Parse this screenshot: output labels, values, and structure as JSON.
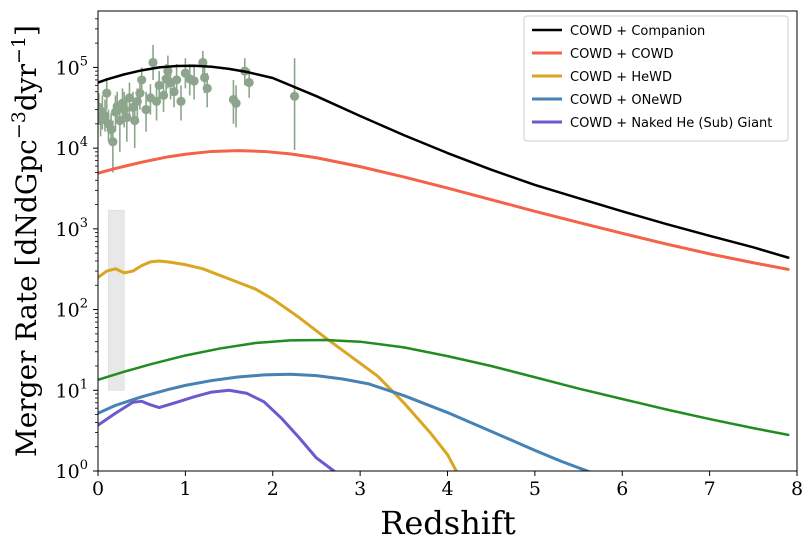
{
  "chart_data": {
    "type": "line",
    "title": "",
    "xlabel": "Redshift",
    "ylabel_main": "Merger Rate [dNdGpc",
    "ylabel_sup1": "−3",
    "ylabel_mid": "dyr",
    "ylabel_sup2": "−1",
    "ylabel_end": "]",
    "xlim": [
      0,
      8
    ],
    "ylim": [
      1,
      500000
    ],
    "yscale": "log",
    "grid": false,
    "legend_position": "top-right",
    "x_ticks": [
      "0",
      "1",
      "2",
      "3",
      "4",
      "5",
      "6",
      "7",
      "8"
    ],
    "y_tick_base": "10",
    "y_tick_exps": [
      "0",
      "1",
      "2",
      "3",
      "4",
      "5"
    ],
    "series": [
      {
        "name": "COWD + Companion",
        "color": "#000000",
        "width": 2.5,
        "x": [
          0.0,
          0.1,
          0.3,
          0.5,
          0.7,
          0.9,
          1.1,
          1.3,
          1.5,
          1.7,
          2.0,
          2.5,
          3.0,
          3.5,
          4.0,
          4.5,
          5.0,
          5.5,
          6.0,
          6.5,
          7.0,
          7.5,
          7.9
        ],
        "y": [
          65000,
          71000,
          82000,
          92000,
          100000,
          104000,
          105000,
          102000,
          96000,
          88000,
          74000,
          44000,
          25000,
          14500,
          8700,
          5400,
          3500,
          2400,
          1650,
          1150,
          820,
          590,
          440
        ]
      },
      {
        "name": "COWD + COWD",
        "color": "#f4624a",
        "width": 3,
        "x": [
          0.0,
          0.2,
          0.5,
          0.8,
          1.0,
          1.3,
          1.6,
          1.9,
          2.2,
          2.5,
          3.0,
          3.5,
          4.0,
          4.5,
          5.0,
          5.5,
          6.0,
          6.5,
          7.0,
          7.5,
          7.9
        ],
        "y": [
          4900,
          5600,
          6700,
          7800,
          8400,
          9100,
          9300,
          9100,
          8500,
          7600,
          5900,
          4400,
          3200,
          2300,
          1650,
          1200,
          880,
          650,
          490,
          380,
          315
        ]
      },
      {
        "name": "COWD + HeWD",
        "color": "#daa520",
        "width": 3,
        "x": [
          0.0,
          0.1,
          0.2,
          0.3,
          0.4,
          0.5,
          0.6,
          0.7,
          0.8,
          1.0,
          1.2,
          1.5,
          1.8,
          2.0,
          2.3,
          2.6,
          2.9,
          3.2,
          3.5,
          3.8,
          4.0,
          4.1
        ],
        "y": [
          250,
          300,
          320,
          285,
          300,
          350,
          390,
          400,
          390,
          360,
          320,
          240,
          180,
          135,
          80,
          45,
          26,
          15,
          7,
          3,
          1.6,
          1.0
        ]
      },
      {
        "name": "",
        "color": "#228b22",
        "width": 2.5,
        "x": [
          0.0,
          0.3,
          0.6,
          1.0,
          1.4,
          1.8,
          2.2,
          2.6,
          3.0,
          3.5,
          4.0,
          4.5,
          5.0,
          5.5,
          6.0,
          6.5,
          7.0,
          7.5,
          7.9
        ],
        "y": [
          13.5,
          17,
          21,
          27,
          33,
          38.5,
          41.5,
          42,
          40,
          34,
          26.5,
          20,
          14.5,
          10.5,
          7.8,
          5.8,
          4.4,
          3.4,
          2.8
        ]
      },
      {
        "name": "COWD + ONeWD",
        "color": "#4682b4",
        "width": 3,
        "x": [
          0.0,
          0.2,
          0.5,
          0.8,
          1.0,
          1.3,
          1.6,
          1.9,
          2.2,
          2.5,
          2.8,
          3.1,
          3.5,
          4.0,
          4.5,
          5.0,
          5.3,
          5.6,
          5.8
        ],
        "y": [
          5.2,
          6.5,
          8.3,
          10.2,
          11.5,
          13.2,
          14.6,
          15.5,
          15.8,
          15.2,
          13.8,
          12,
          8.6,
          5.3,
          3.1,
          1.8,
          1.32,
          1.0,
          0.8
        ]
      },
      {
        "name": "COWD + Naked He (Sub) Giant",
        "color": "#6a5acd",
        "width": 3,
        "x": [
          0.0,
          0.2,
          0.4,
          0.5,
          0.6,
          0.7,
          0.9,
          1.1,
          1.3,
          1.5,
          1.7,
          1.9,
          2.1,
          2.3,
          2.5,
          2.7
        ],
        "y": [
          3.7,
          5.2,
          7.1,
          7.3,
          6.6,
          6.1,
          7.1,
          8.3,
          9.5,
          10.0,
          9.2,
          7.2,
          4.5,
          2.6,
          1.45,
          1.0
        ]
      }
    ],
    "observations": {
      "color": "#8ca58c",
      "points": [
        [
          0.01,
          32000,
          20000,
          48000
        ],
        [
          0.03,
          22000,
          14000,
          35000
        ],
        [
          0.05,
          28000,
          17000,
          45000
        ],
        [
          0.08,
          25000,
          16000,
          40000
        ],
        [
          0.1,
          48000,
          30000,
          70000
        ],
        [
          0.12,
          20000,
          12000,
          30000
        ],
        [
          0.15,
          17000,
          11000,
          27000
        ],
        [
          0.17,
          12000,
          5000,
          22000
        ],
        [
          0.2,
          28000,
          16000,
          45000
        ],
        [
          0.22,
          33000,
          20000,
          50000
        ],
        [
          0.25,
          22000,
          9000,
          38000
        ],
        [
          0.28,
          36000,
          22000,
          55000
        ],
        [
          0.3,
          30000,
          18000,
          50000
        ],
        [
          0.33,
          24000,
          12000,
          40000
        ],
        [
          0.36,
          42000,
          25000,
          65000
        ],
        [
          0.4,
          32000,
          20000,
          50000
        ],
        [
          0.42,
          22000,
          10000,
          35000
        ],
        [
          0.45,
          38000,
          24000,
          55000
        ],
        [
          0.48,
          48000,
          30000,
          70000
        ],
        [
          0.5,
          70000,
          45000,
          100000
        ],
        [
          0.55,
          30000,
          16000,
          50000
        ],
        [
          0.6,
          42000,
          26000,
          62000
        ],
        [
          0.63,
          115000,
          70000,
          190000
        ],
        [
          0.67,
          38000,
          22000,
          58000
        ],
        [
          0.7,
          60000,
          40000,
          90000
        ],
        [
          0.75,
          45000,
          28000,
          70000
        ],
        [
          0.78,
          72000,
          45000,
          110000
        ],
        [
          0.8,
          90000,
          55000,
          140000
        ],
        [
          0.83,
          65000,
          40000,
          100000
        ],
        [
          0.87,
          50000,
          32000,
          75000
        ],
        [
          0.9,
          70000,
          45000,
          110000
        ],
        [
          0.95,
          38000,
          22000,
          60000
        ],
        [
          1.0,
          85000,
          55000,
          130000
        ],
        [
          1.05,
          72000,
          45000,
          110000
        ],
        [
          1.1,
          68000,
          40000,
          105000
        ],
        [
          1.2,
          115000,
          80000,
          160000
        ],
        [
          1.22,
          75000,
          48000,
          115000
        ],
        [
          1.25,
          55000,
          32000,
          85000
        ],
        [
          1.55,
          40000,
          20000,
          70000
        ],
        [
          1.58,
          36000,
          18000,
          60000
        ],
        [
          1.68,
          90000,
          60000,
          130000
        ],
        [
          1.73,
          65000,
          42000,
          95000
        ],
        [
          2.25,
          44000,
          9500,
          130000
        ]
      ]
    },
    "shaded_band": {
      "x": [
        0.12,
        0.3
      ],
      "y": [
        10,
        1700
      ],
      "color": "#e8e8e8"
    }
  }
}
